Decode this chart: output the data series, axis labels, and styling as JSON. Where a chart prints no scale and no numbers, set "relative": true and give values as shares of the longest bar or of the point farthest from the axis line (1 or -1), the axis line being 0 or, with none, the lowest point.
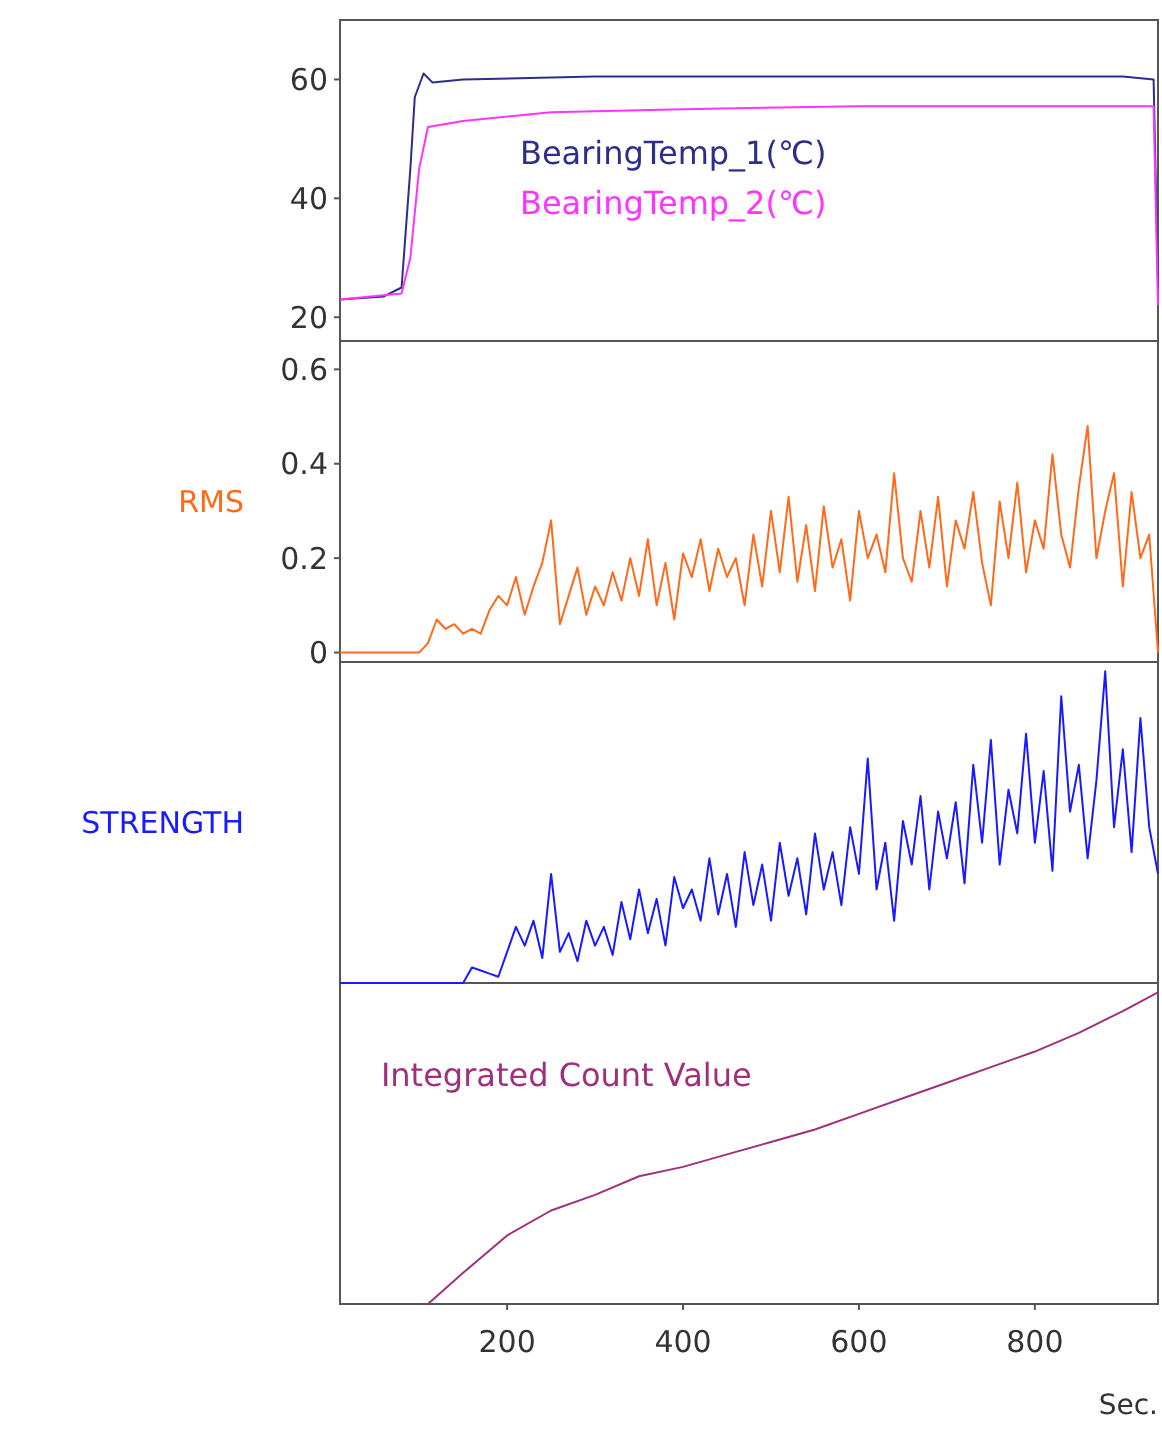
{
  "chart_data": [
    {
      "type": "line",
      "xlim": [
        10,
        940
      ],
      "ylim": [
        16,
        70
      ],
      "yticks": [
        20,
        40,
        60
      ],
      "tick_labels": "y",
      "legend": "center",
      "series": [
        {
          "name": "BearingTemp_1(℃)",
          "color": "#2b2f8a",
          "x": [
            10,
            60,
            80,
            90,
            95,
            105,
            115,
            150,
            300,
            600,
            900,
            935,
            940
          ],
          "values": [
            23,
            23.5,
            25,
            45,
            57,
            61,
            59.5,
            60,
            60.5,
            60.5,
            60.5,
            60,
            25
          ]
        },
        {
          "name": "BearingTemp_2(℃)",
          "color": "#ff33ff",
          "x": [
            10,
            80,
            90,
            100,
            110,
            150,
            250,
            400,
            600,
            935,
            940
          ],
          "values": [
            23,
            24,
            30,
            45,
            52,
            53,
            54.5,
            55,
            55.5,
            55.5,
            22
          ]
        }
      ]
    },
    {
      "type": "line",
      "ylabel": "RMS",
      "xlim": [
        10,
        940
      ],
      "ylim": [
        -0.02,
        0.66
      ],
      "yticks": [
        0,
        0.2,
        0.4,
        0.6
      ],
      "tick_labels": "y",
      "series": [
        {
          "color": "#ff6a1a",
          "x": [
            10,
            20,
            30,
            40,
            50,
            60,
            70,
            80,
            90,
            100,
            110,
            120,
            130,
            140,
            150,
            160,
            170,
            180,
            190,
            200,
            210,
            220,
            230,
            240,
            250,
            260,
            270,
            280,
            290,
            300,
            310,
            320,
            330,
            340,
            350,
            360,
            370,
            380,
            390,
            400,
            410,
            420,
            430,
            440,
            450,
            460,
            470,
            480,
            490,
            500,
            510,
            520,
            530,
            540,
            550,
            560,
            570,
            580,
            590,
            600,
            610,
            620,
            630,
            640,
            650,
            660,
            670,
            680,
            690,
            700,
            710,
            720,
            730,
            740,
            750,
            760,
            770,
            780,
            790,
            800,
            810,
            820,
            830,
            840,
            850,
            860,
            870,
            880,
            890,
            900,
            910,
            920,
            930,
            940
          ],
          "values": [
            0,
            0,
            0,
            0,
            0,
            0,
            0,
            0,
            0,
            0,
            0.02,
            0.07,
            0.05,
            0.06,
            0.04,
            0.05,
            0.04,
            0.09,
            0.12,
            0.1,
            0.16,
            0.08,
            0.14,
            0.19,
            0.28,
            0.06,
            0.12,
            0.18,
            0.08,
            0.14,
            0.1,
            0.17,
            0.11,
            0.2,
            0.12,
            0.24,
            0.1,
            0.19,
            0.07,
            0.21,
            0.16,
            0.24,
            0.13,
            0.22,
            0.16,
            0.2,
            0.1,
            0.25,
            0.14,
            0.3,
            0.17,
            0.33,
            0.15,
            0.27,
            0.13,
            0.31,
            0.18,
            0.24,
            0.11,
            0.3,
            0.2,
            0.25,
            0.17,
            0.38,
            0.2,
            0.15,
            0.3,
            0.18,
            0.33,
            0.14,
            0.28,
            0.22,
            0.34,
            0.19,
            0.1,
            0.32,
            0.2,
            0.36,
            0.17,
            0.28,
            0.22,
            0.42,
            0.25,
            0.18,
            0.35,
            0.48,
            0.2,
            0.3,
            0.38,
            0.14,
            0.34,
            0.2,
            0.25,
            0
          ]
        }
      ]
    },
    {
      "type": "line",
      "ylabel": "STRENGTH",
      "xlim": [
        10,
        940
      ],
      "relative": true,
      "tick_labels": false,
      "series": [
        {
          "color": "#1a1aff",
          "x": [
            10,
            20,
            30,
            40,
            50,
            60,
            70,
            80,
            90,
            100,
            110,
            120,
            130,
            140,
            150,
            160,
            170,
            180,
            190,
            200,
            210,
            220,
            230,
            240,
            250,
            260,
            270,
            280,
            290,
            300,
            310,
            320,
            330,
            340,
            350,
            360,
            370,
            380,
            390,
            400,
            410,
            420,
            430,
            440,
            450,
            460,
            470,
            480,
            490,
            500,
            510,
            520,
            530,
            540,
            550,
            560,
            570,
            580,
            590,
            600,
            610,
            620,
            630,
            640,
            650,
            660,
            670,
            680,
            690,
            700,
            710,
            720,
            730,
            740,
            750,
            760,
            770,
            780,
            790,
            800,
            810,
            820,
            830,
            840,
            850,
            860,
            870,
            880,
            890,
            900,
            910,
            920,
            930,
            940
          ],
          "values": [
            0,
            0,
            0,
            0,
            0,
            0,
            0,
            0,
            0,
            0,
            0,
            0,
            0,
            0,
            0,
            0.05,
            0.04,
            0.03,
            0.02,
            0.1,
            0.18,
            0.12,
            0.2,
            0.08,
            0.35,
            0.1,
            0.16,
            0.07,
            0.2,
            0.12,
            0.18,
            0.09,
            0.26,
            0.14,
            0.3,
            0.16,
            0.27,
            0.12,
            0.34,
            0.24,
            0.3,
            0.2,
            0.4,
            0.22,
            0.35,
            0.18,
            0.42,
            0.25,
            0.38,
            0.2,
            0.45,
            0.28,
            0.4,
            0.22,
            0.48,
            0.3,
            0.42,
            0.25,
            0.5,
            0.35,
            0.72,
            0.3,
            0.45,
            0.2,
            0.52,
            0.38,
            0.6,
            0.3,
            0.55,
            0.4,
            0.58,
            0.32,
            0.7,
            0.45,
            0.78,
            0.38,
            0.62,
            0.48,
            0.8,
            0.45,
            0.68,
            0.36,
            0.92,
            0.55,
            0.7,
            0.4,
            0.65,
            1.0,
            0.5,
            0.75,
            0.42,
            0.85,
            0.5,
            0.35
          ]
        }
      ]
    },
    {
      "type": "line",
      "xlabel": "Sec.",
      "xlim": [
        10,
        940
      ],
      "xticks": [
        200,
        400,
        600,
        800
      ],
      "relative": true,
      "tick_labels": "x",
      "legend": "top left",
      "series": [
        {
          "name": "Integrated Count Value",
          "color": "#a0307a",
          "x": [
            110,
            150,
            200,
            250,
            300,
            350,
            400,
            450,
            500,
            550,
            600,
            650,
            700,
            750,
            800,
            850,
            900,
            940
          ],
          "values": [
            0,
            0.1,
            0.22,
            0.3,
            0.35,
            0.41,
            0.44,
            0.48,
            0.52,
            0.56,
            0.61,
            0.66,
            0.71,
            0.76,
            0.81,
            0.87,
            0.94,
            1.0
          ]
        }
      ]
    }
  ]
}
